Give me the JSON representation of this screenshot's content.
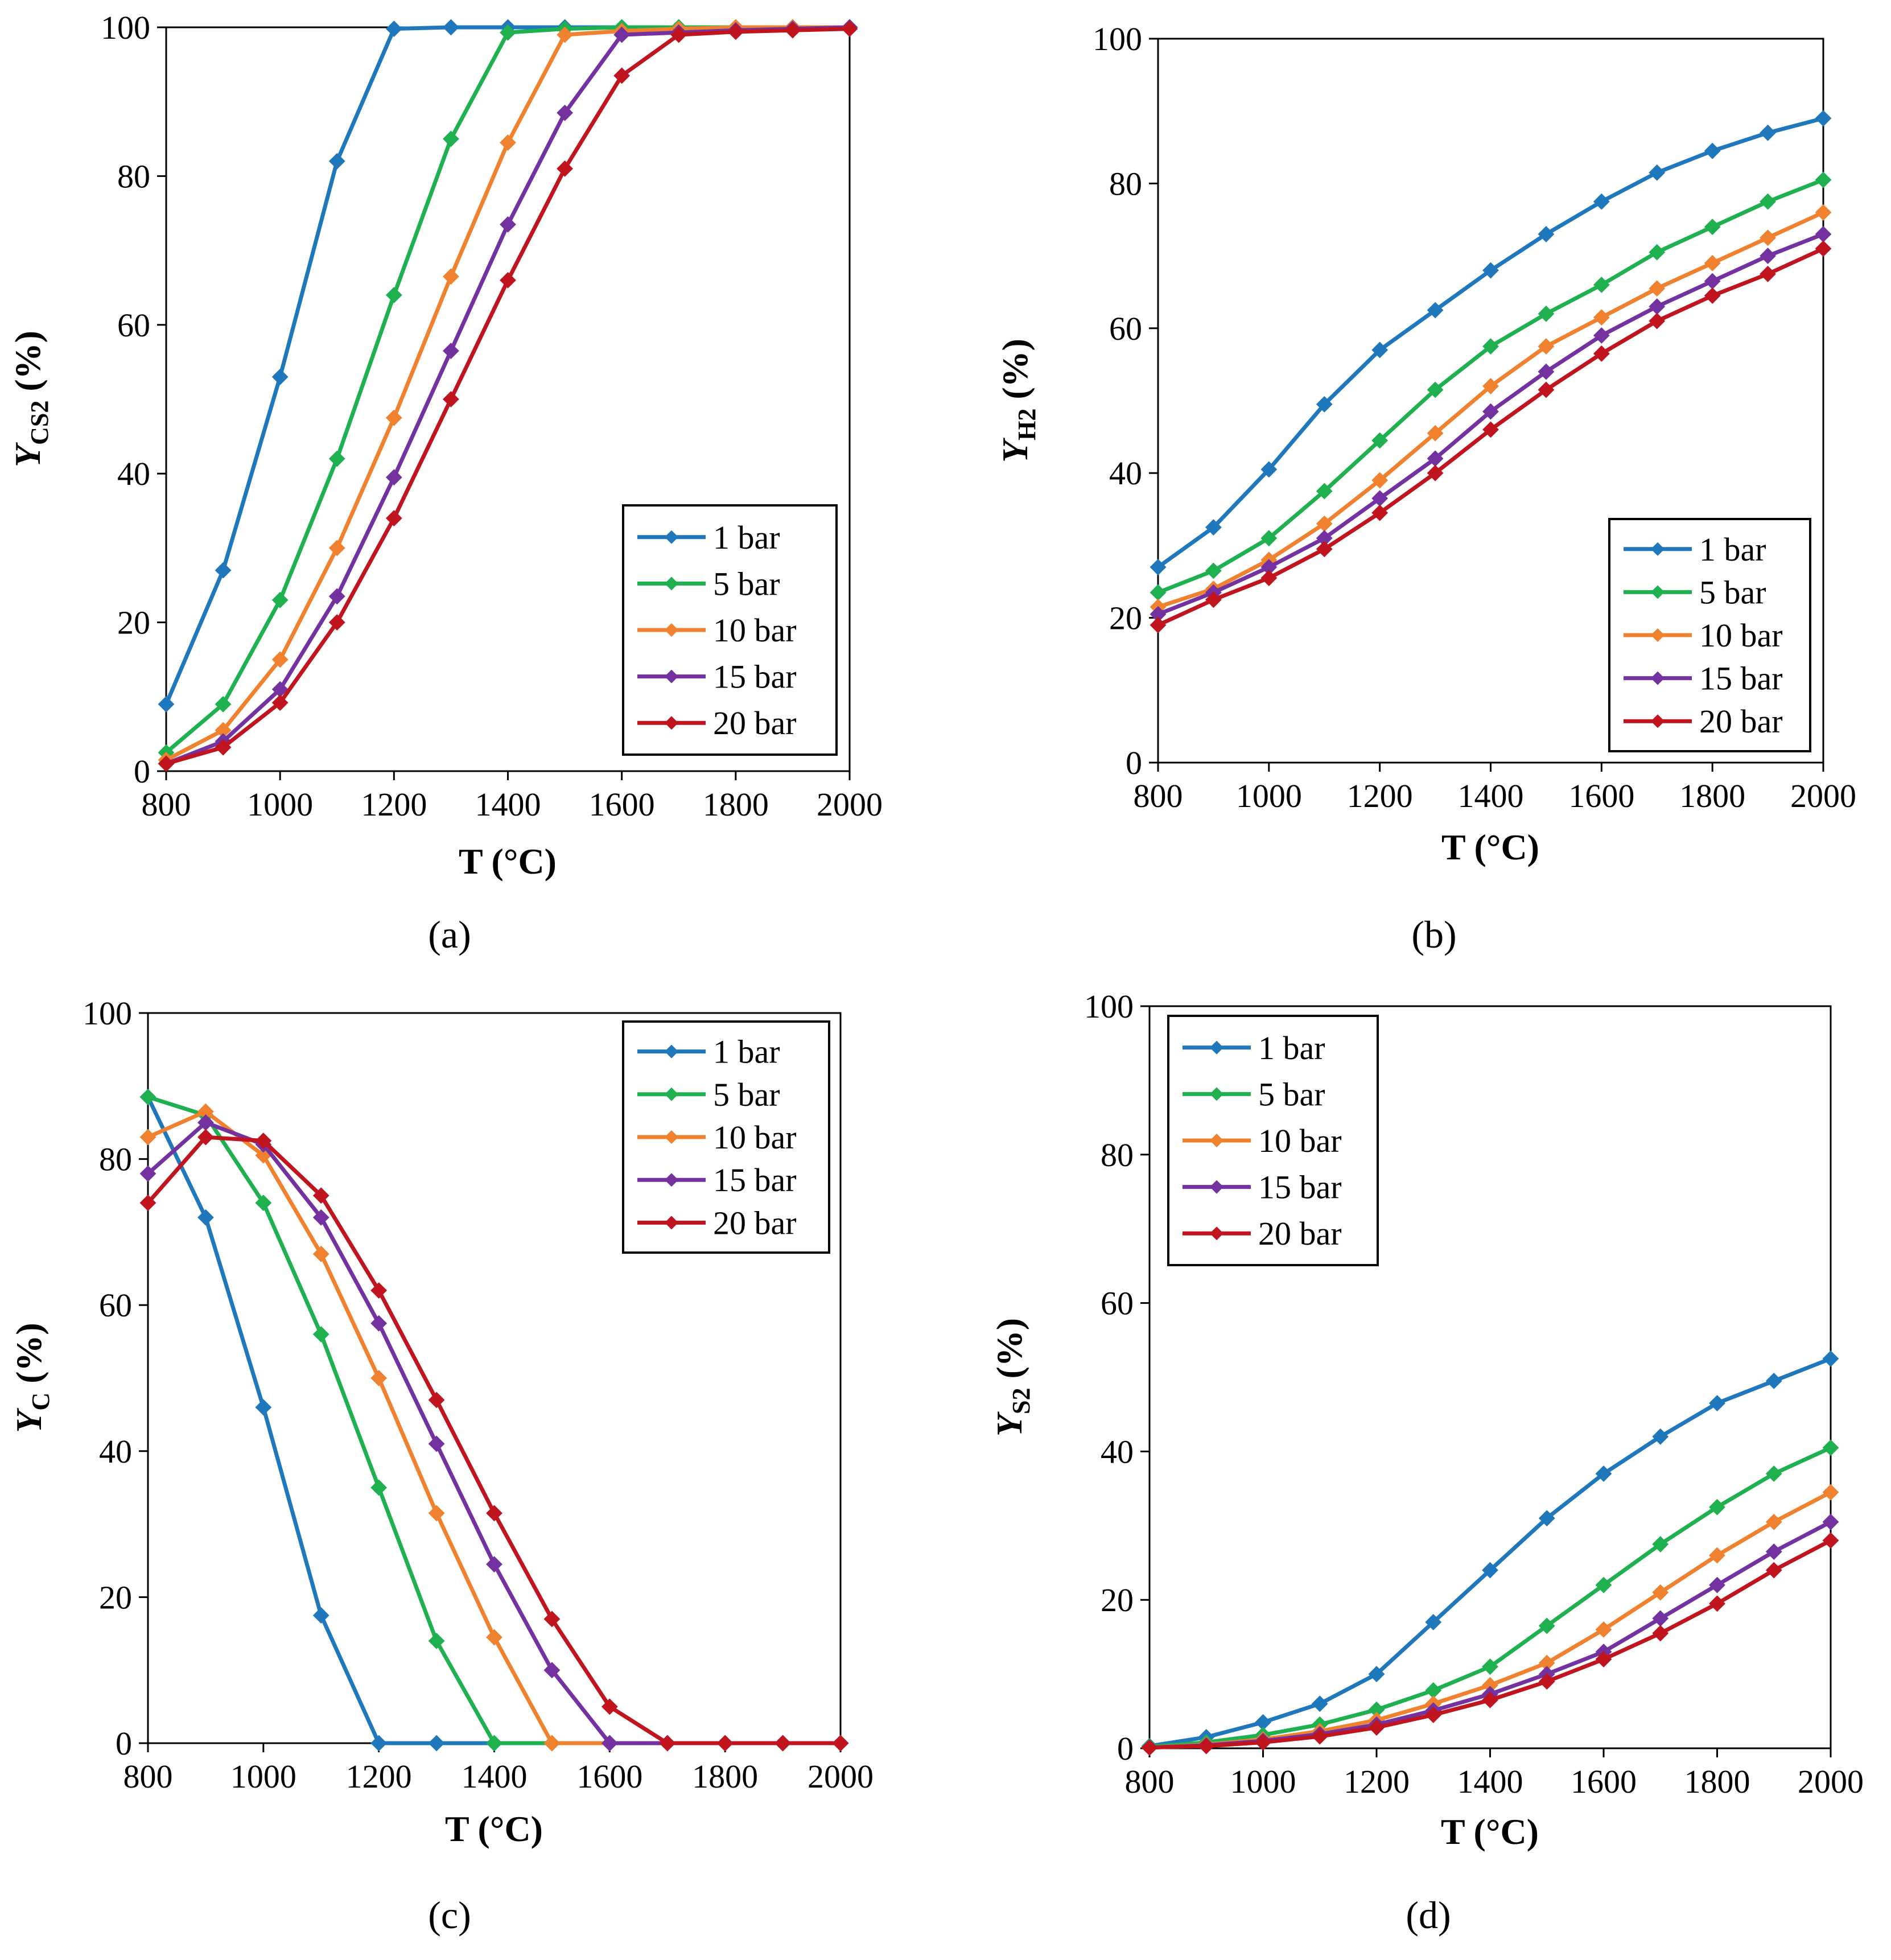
{
  "figure": {
    "colors": {
      "1 bar": "#1F77BC",
      "5 bar": "#1FB14F",
      "10 bar": "#F0822F",
      "15 bar": "#7332A0",
      "20 bar": "#C0141F"
    }
  },
  "chart_data": [
    {
      "type": "line",
      "panel_label": "(a)",
      "panel_letter": "a",
      "xlabel": "T (°C)",
      "ylabel_main": "Y",
      "ylabel_sub": "CS2",
      "ylabel_tail": " (%)",
      "xlim": [
        800,
        2000
      ],
      "ylim": [
        0,
        100
      ],
      "x_ticks": [
        "800",
        "1000",
        "1200",
        "1400",
        "1600",
        "1800",
        "2000"
      ],
      "y_ticks": [
        "0",
        "20",
        "40",
        "60",
        "80",
        "100"
      ],
      "legend_position": "bottom-right",
      "x": [
        800,
        900,
        1000,
        1100,
        1200,
        1300,
        1400,
        1500,
        1600,
        1700,
        1800,
        1900,
        2000
      ],
      "series": [
        {
          "name": "1 bar",
          "values": [
            9,
            27,
            53,
            82,
            99.8,
            100,
            100,
            100,
            100,
            100,
            100,
            100,
            100
          ]
        },
        {
          "name": "5 bar",
          "values": [
            2.5,
            9,
            23,
            42,
            64,
            85,
            99.3,
            99.8,
            100,
            100,
            100,
            100,
            100
          ]
        },
        {
          "name": "10 bar",
          "values": [
            1.5,
            5.5,
            15,
            30,
            47.5,
            66.5,
            84.5,
            99,
            99.5,
            99.8,
            100,
            100,
            100
          ]
        },
        {
          "name": "15 bar",
          "values": [
            1,
            4,
            11,
            23.5,
            39.5,
            56.5,
            73.5,
            88.5,
            99,
            99.3,
            99.6,
            99.8,
            100
          ]
        },
        {
          "name": "20 bar",
          "values": [
            1,
            3.2,
            9.2,
            20,
            34,
            50,
            66,
            81,
            93.5,
            99,
            99.4,
            99.6,
            99.8
          ]
        }
      ]
    },
    {
      "type": "line",
      "panel_label": "(b)",
      "panel_letter": "b",
      "xlabel": "T (°C)",
      "ylabel_main": "Y",
      "ylabel_sub": "H2",
      "ylabel_tail": " (%)",
      "xlim": [
        800,
        2000
      ],
      "ylim": [
        0,
        100
      ],
      "x_ticks": [
        "800",
        "1000",
        "1200",
        "1400",
        "1600",
        "1800",
        "2000"
      ],
      "y_ticks": [
        "0",
        "20",
        "40",
        "60",
        "80",
        "100"
      ],
      "legend_position": "bottom-right",
      "x": [
        800,
        900,
        1000,
        1100,
        1200,
        1300,
        1400,
        1500,
        1600,
        1700,
        1800,
        1900,
        2000
      ],
      "series": [
        {
          "name": "1 bar",
          "values": [
            27,
            32.5,
            40.5,
            49.5,
            57,
            62.5,
            68,
            73,
            77.5,
            81.5,
            84.5,
            87,
            89
          ]
        },
        {
          "name": "5 bar",
          "values": [
            23.5,
            26.5,
            31,
            37.5,
            44.5,
            51.5,
            57.5,
            62,
            66,
            70.5,
            74,
            77.5,
            80.5
          ]
        },
        {
          "name": "10 bar",
          "values": [
            21.5,
            24,
            28,
            33,
            39,
            45.5,
            52,
            57.5,
            61.5,
            65.5,
            69,
            72.5,
            76
          ]
        },
        {
          "name": "15 bar",
          "values": [
            20.5,
            23.5,
            27,
            31,
            36.5,
            42,
            48.5,
            54,
            59,
            63,
            66.5,
            70,
            73
          ]
        },
        {
          "name": "20 bar",
          "values": [
            19,
            22.5,
            25.5,
            29.5,
            34.5,
            40,
            46,
            51.5,
            56.5,
            61,
            64.5,
            67.5,
            71
          ]
        }
      ]
    },
    {
      "type": "line",
      "panel_label": "(c)",
      "panel_letter": "c",
      "xlabel": "T (°C)",
      "ylabel_main": "Y",
      "ylabel_sub": "C",
      "ylabel_tail": " (%)",
      "xlim": [
        800,
        2000
      ],
      "ylim": [
        0,
        100
      ],
      "x_ticks": [
        "800",
        "1000",
        "1200",
        "1400",
        "1600",
        "1800",
        "2000"
      ],
      "y_ticks": [
        "0",
        "20",
        "40",
        "60",
        "80",
        "100"
      ],
      "legend_position": "top-right",
      "x": [
        800,
        900,
        1000,
        1100,
        1200,
        1300,
        1400,
        1500,
        1600,
        1700,
        1800,
        1900,
        2000
      ],
      "series": [
        {
          "name": "1 bar",
          "values": [
            88.5,
            72,
            46,
            17.5,
            0,
            0,
            0,
            0,
            0,
            0,
            0,
            0,
            0
          ]
        },
        {
          "name": "5 bar",
          "values": [
            88.5,
            86,
            74,
            56,
            35,
            14,
            0,
            0,
            0,
            0,
            0,
            0,
            0
          ]
        },
        {
          "name": "10 bar",
          "values": [
            83,
            86.5,
            80.5,
            67,
            50,
            31.5,
            14.5,
            0,
            0,
            0,
            0,
            0,
            0
          ]
        },
        {
          "name": "15 bar",
          "values": [
            78,
            85,
            82,
            72,
            57.5,
            41,
            24.5,
            10,
            0,
            0,
            0,
            0,
            0
          ]
        },
        {
          "name": "20 bar",
          "values": [
            74,
            83,
            82.5,
            75,
            62,
            47,
            31.5,
            17,
            5,
            0,
            0,
            0,
            0
          ]
        }
      ]
    },
    {
      "type": "line",
      "panel_label": "(d)",
      "panel_letter": "d",
      "xlabel": "T (°C)",
      "ylabel_main": "Y",
      "ylabel_sub": "S2",
      "ylabel_tail": " (%)",
      "xlim": [
        800,
        2000
      ],
      "ylim": [
        0,
        100
      ],
      "x_ticks": [
        "800",
        "1000",
        "1200",
        "1400",
        "1600",
        "1800",
        "2000"
      ],
      "y_ticks": [
        "0",
        "20",
        "40",
        "60",
        "80",
        "100"
      ],
      "legend_position": "top-left",
      "x": [
        800,
        900,
        1000,
        1100,
        1200,
        1300,
        1400,
        1500,
        1600,
        1700,
        1800,
        1900,
        2000
      ],
      "series": [
        {
          "name": "1 bar",
          "values": [
            0.3,
            1.5,
            3.5,
            6,
            10,
            17,
            24,
            31,
            37,
            42,
            46.5,
            49.5,
            52.5
          ]
        },
        {
          "name": "5 bar",
          "values": [
            0.2,
            0.8,
            1.8,
            3.2,
            5.2,
            7.8,
            11,
            16.5,
            22,
            27.5,
            32.5,
            37,
            40.5
          ]
        },
        {
          "name": "10 bar",
          "values": [
            0.1,
            0.5,
            1.2,
            2.3,
            3.8,
            6,
            8.5,
            11.5,
            16,
            21,
            26,
            30.5,
            34.5
          ]
        },
        {
          "name": "15 bar",
          "values": [
            0.1,
            0.4,
            1,
            1.9,
            3.2,
            5.1,
            7.3,
            10,
            13,
            17.5,
            22,
            26.5,
            30.5
          ]
        },
        {
          "name": "20 bar",
          "values": [
            0.1,
            0.3,
            0.8,
            1.6,
            2.8,
            4.5,
            6.5,
            9,
            12,
            15.5,
            19.5,
            24,
            28
          ]
        }
      ]
    }
  ]
}
